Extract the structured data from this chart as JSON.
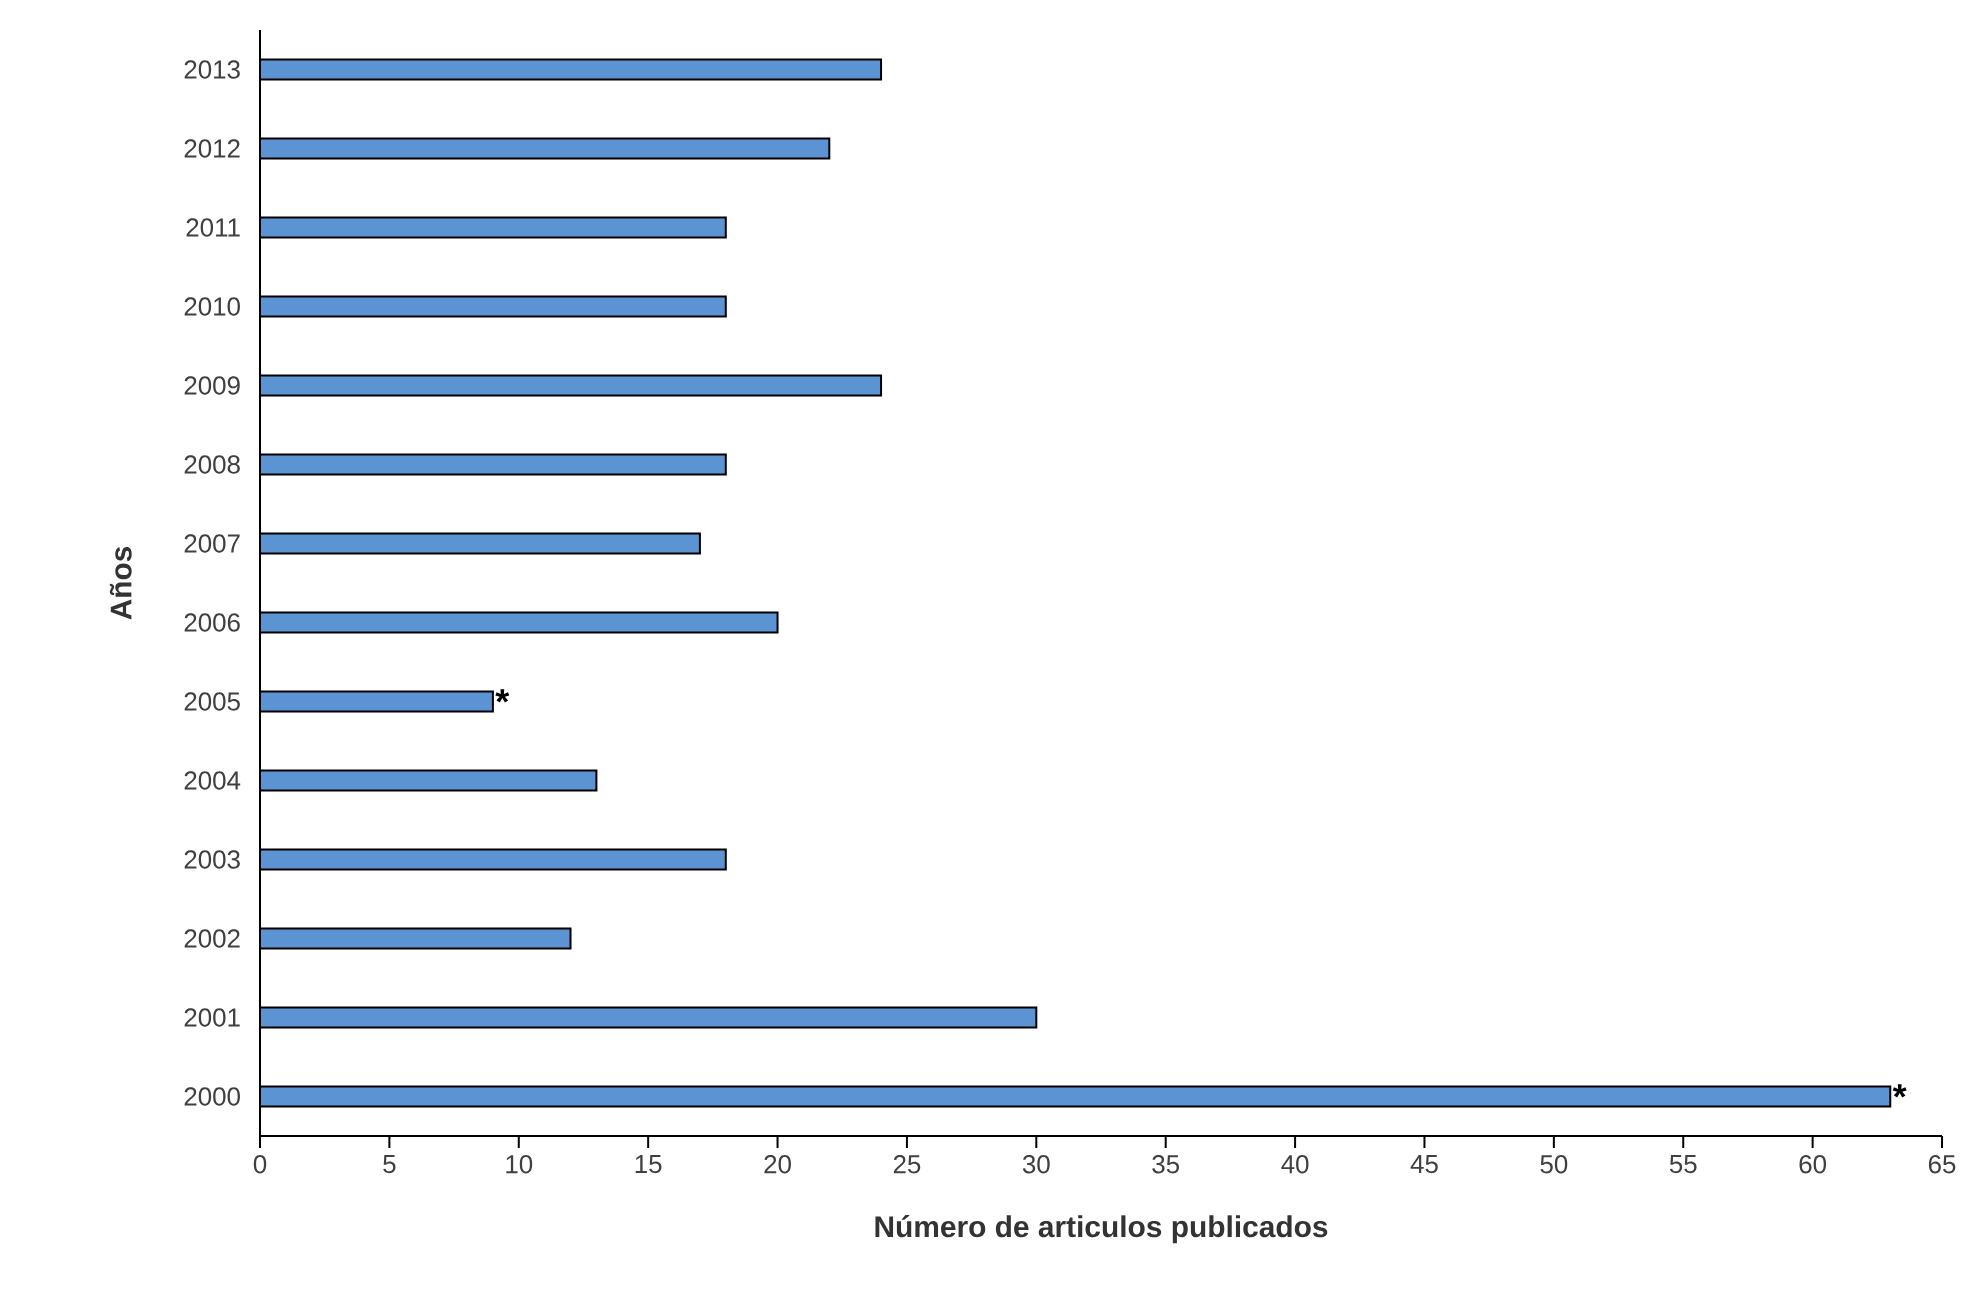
{
  "chart_data": {
    "type": "bar",
    "orientation": "horizontal",
    "xlabel": "Número de articulos publicados",
    "ylabel": "Años",
    "categories": [
      "2013",
      "2012",
      "2011",
      "2010",
      "2009",
      "2008",
      "2007",
      "2006",
      "2005",
      "2004",
      "2003",
      "2002",
      "2001",
      "2000"
    ],
    "values": [
      24,
      22,
      18,
      18,
      24,
      18,
      17,
      20,
      9,
      13,
      18,
      12,
      30,
      63
    ],
    "color": "#5b93d3",
    "xlim": [
      0,
      65
    ],
    "xticks": [
      0,
      5,
      10,
      15,
      20,
      25,
      30,
      35,
      40,
      45,
      50,
      55,
      60,
      65
    ],
    "grid": false,
    "annotations": [
      {
        "text": "*",
        "x": 9,
        "y": "2005"
      },
      {
        "text": "*",
        "x": 63,
        "y": "2000"
      }
    ]
  }
}
